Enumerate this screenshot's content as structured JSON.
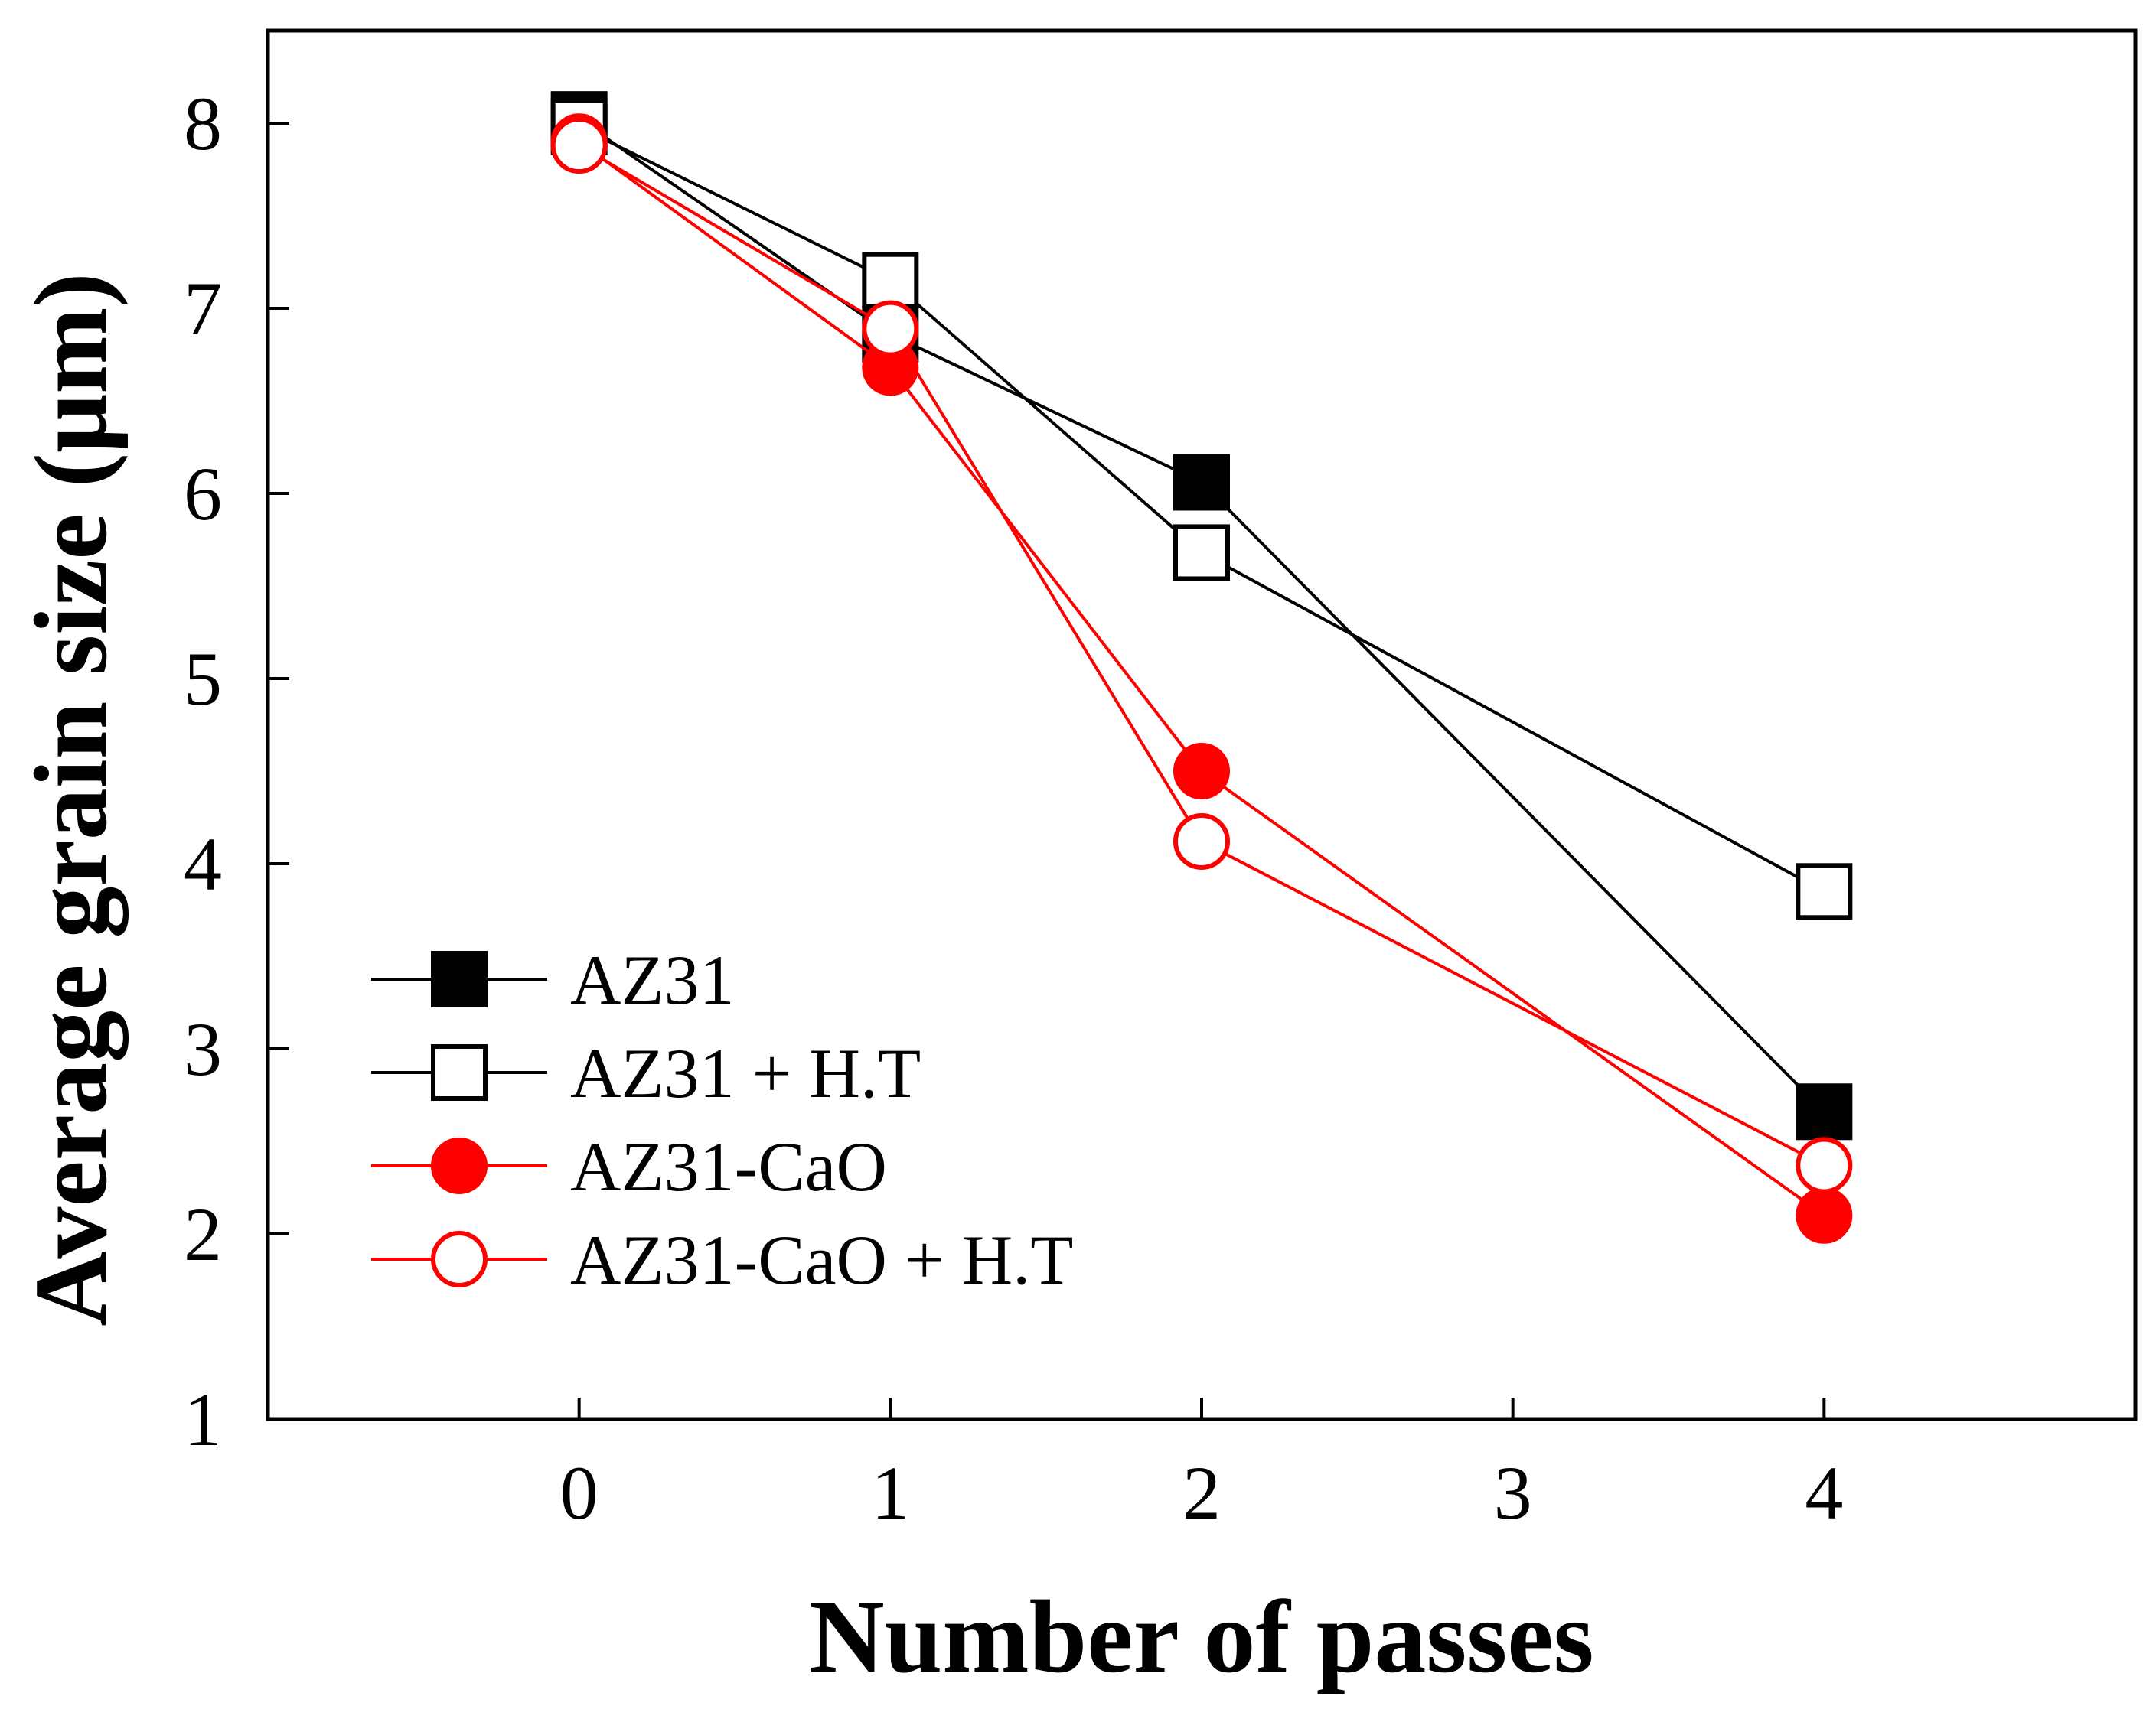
{
  "chart_data": {
    "type": "line",
    "title": "",
    "xlabel": "Number of passes",
    "ylabel": "Average grain size (μm)",
    "xlim": [
      -1,
      5
    ],
    "ylim": [
      1,
      8.5
    ],
    "xticks": [
      0,
      1,
      2,
      3,
      4
    ],
    "yticks": [
      1,
      2,
      3,
      4,
      5,
      6,
      7,
      8
    ],
    "grid": false,
    "legend_position": "bottom-left",
    "series": [
      {
        "name": "AZ31",
        "x": [
          0,
          1,
          2,
          4
        ],
        "values": [
          8.02,
          6.86,
          6.06,
          2.66
        ],
        "color": "#000000",
        "marker": "square",
        "filled": true
      },
      {
        "name": "AZ31 + H.T",
        "x": [
          0,
          1,
          2,
          4
        ],
        "values": [
          7.98,
          7.15,
          5.68,
          3.85
        ],
        "color": "#000000",
        "marker": "square",
        "filled": false
      },
      {
        "name": "AZ31-CaO",
        "x": [
          0,
          1,
          2,
          4
        ],
        "values": [
          7.9,
          6.68,
          4.5,
          2.1
        ],
        "color": "#ff0000",
        "marker": "circle",
        "filled": true
      },
      {
        "name": "AZ31-CaO + H.T",
        "x": [
          0,
          1,
          2,
          4
        ],
        "values": [
          7.88,
          6.89,
          4.12,
          2.37
        ],
        "color": "#ff0000",
        "marker": "circle",
        "filled": false
      }
    ]
  }
}
